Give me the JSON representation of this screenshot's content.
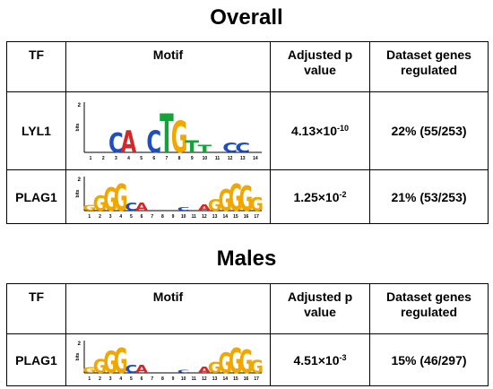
{
  "sections": [
    {
      "title": "Overall",
      "headers": {
        "tf": "TF",
        "motif": "Motif",
        "pvalue": "Adjusted p value",
        "genes": "Dataset genes regulated"
      },
      "rows": [
        {
          "tf": "LYL1",
          "p_base": "4.13×10",
          "p_exp": "-10",
          "genes": "22% (55/253)",
          "motif_icon": "lyl1-sequence-logo",
          "logo": {
            "ymax": "2",
            "ylabel": "bits",
            "positions": [
              "1",
              "2",
              "3",
              "4",
              "5",
              "6",
              "7",
              "8",
              "9",
              "10",
              "11",
              "12",
              "13",
              "14"
            ],
            "letters": [
              {
                "c": "C",
                "p": 3,
                "h": 0.8
              },
              {
                "c": "A",
                "p": 4,
                "h": 0.9
              },
              {
                "c": "C",
                "p": 6,
                "h": 0.9
              },
              {
                "c": "T",
                "p": 7,
                "h": 1.6
              },
              {
                "c": "G",
                "p": 8,
                "h": 1.3
              },
              {
                "c": "T",
                "p": 9,
                "h": 0.5
              },
              {
                "c": "T",
                "p": 10,
                "h": 0.3
              },
              {
                "c": "C",
                "p": 12,
                "h": 0.4
              },
              {
                "c": "C",
                "p": 13,
                "h": 0.4
              }
            ]
          }
        },
        {
          "tf": "PLAG1",
          "p_base": "1.25×10",
          "p_exp": "-2",
          "genes": "21% (53/253)",
          "motif_icon": "plag1-sequence-logo",
          "logo": {
            "ymax": "2",
            "ylabel": "bits",
            "positions": [
              "1",
              "2",
              "3",
              "4",
              "5",
              "6",
              "7",
              "8",
              "9",
              "10",
              "11",
              "12",
              "13",
              "14",
              "15",
              "16",
              "17"
            ],
            "letters": [
              {
                "c": "G",
                "p": 1,
                "h": 0.35
              },
              {
                "c": "G",
                "p": 2,
                "h": 0.9
              },
              {
                "c": "G",
                "p": 3,
                "h": 1.4
              },
              {
                "c": "G",
                "p": 4,
                "h": 1.6
              },
              {
                "c": "C",
                "p": 5,
                "h": 0.5
              },
              {
                "c": "A",
                "p": 6,
                "h": 0.5
              },
              {
                "c": "C",
                "p": 10,
                "h": 0.2
              },
              {
                "c": "A",
                "p": 12,
                "h": 0.4
              },
              {
                "c": "G",
                "p": 13,
                "h": 0.7
              },
              {
                "c": "G",
                "p": 14,
                "h": 1.3
              },
              {
                "c": "G",
                "p": 15,
                "h": 1.6
              },
              {
                "c": "G",
                "p": 16,
                "h": 1.5
              },
              {
                "c": "G",
                "p": 17,
                "h": 0.8
              }
            ]
          }
        }
      ]
    },
    {
      "title": "Males",
      "headers": {
        "tf": "TF",
        "motif": "Motif",
        "pvalue": "Adjusted p value",
        "genes": "Dataset genes regulated"
      },
      "rows": [
        {
          "tf": "PLAG1",
          "p_base": "4.51×10",
          "p_exp": "-3",
          "genes": "15% (46/297)",
          "motif_icon": "plag1-sequence-logo",
          "logo": {
            "ymax": "2",
            "ylabel": "bits",
            "positions": [
              "1",
              "2",
              "3",
              "4",
              "5",
              "6",
              "7",
              "8",
              "9",
              "10",
              "11",
              "12",
              "13",
              "14",
              "15",
              "16",
              "17"
            ],
            "letters": [
              {
                "c": "G",
                "p": 1,
                "h": 0.35
              },
              {
                "c": "G",
                "p": 2,
                "h": 0.9
              },
              {
                "c": "G",
                "p": 3,
                "h": 1.4
              },
              {
                "c": "G",
                "p": 4,
                "h": 1.6
              },
              {
                "c": "C",
                "p": 5,
                "h": 0.5
              },
              {
                "c": "A",
                "p": 6,
                "h": 0.5
              },
              {
                "c": "C",
                "p": 10,
                "h": 0.2
              },
              {
                "c": "A",
                "p": 12,
                "h": 0.4
              },
              {
                "c": "G",
                "p": 13,
                "h": 0.7
              },
              {
                "c": "G",
                "p": 14,
                "h": 1.3
              },
              {
                "c": "G",
                "p": 15,
                "h": 1.6
              },
              {
                "c": "G",
                "p": 16,
                "h": 1.5
              },
              {
                "c": "G",
                "p": 17,
                "h": 0.8
              }
            ]
          }
        }
      ]
    }
  ],
  "colors": {
    "A": "#d62728",
    "C": "#1f4fbf",
    "G": "#f0a800",
    "T": "#14a33a"
  }
}
